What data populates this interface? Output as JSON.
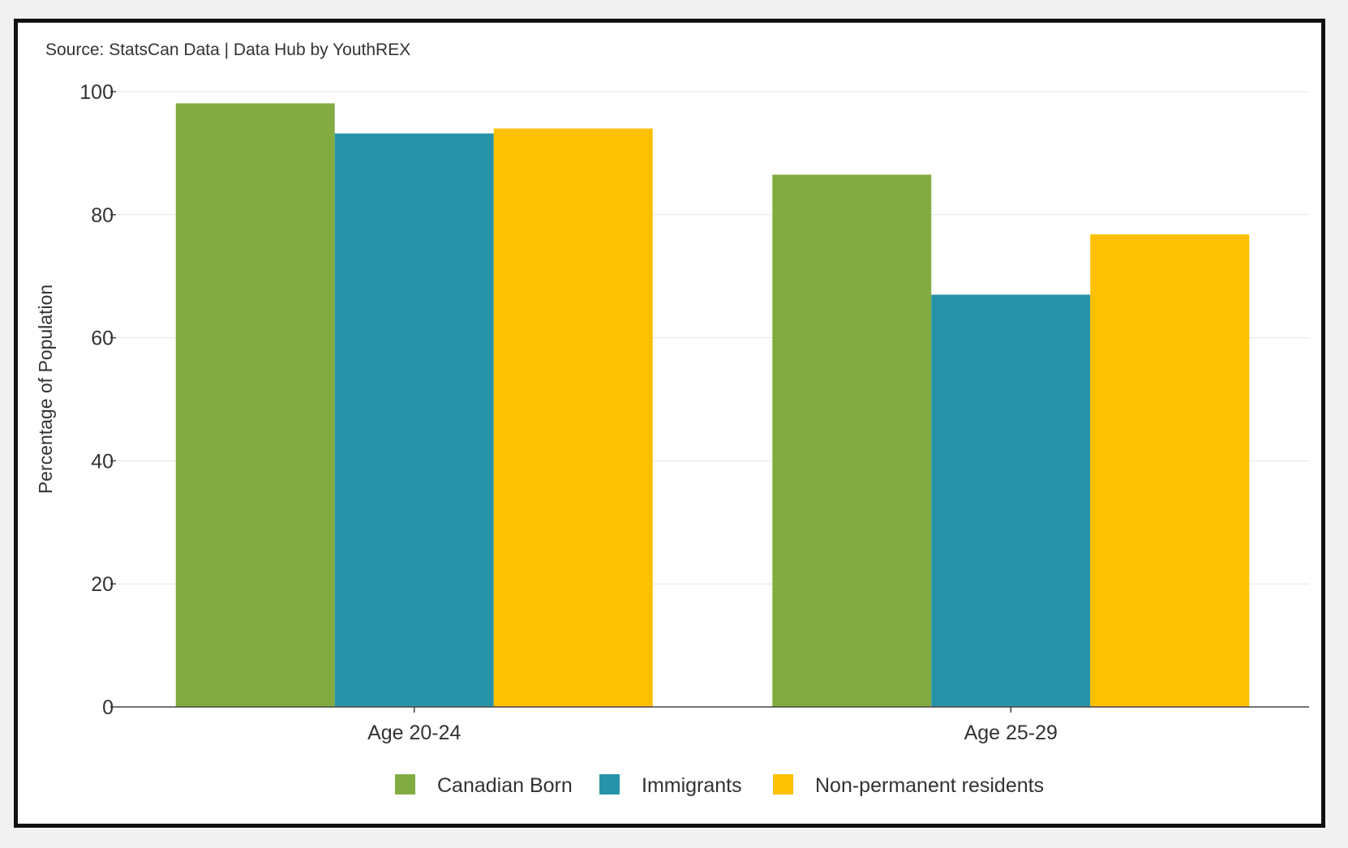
{
  "header": {
    "source": "Source: StatsCan Data | Data Hub by YouthREX"
  },
  "chart_data": {
    "type": "bar",
    "title": "",
    "xlabel": "",
    "ylabel": "Percentage of Population",
    "categories": [
      "Age 20-24",
      "Age 25-29"
    ],
    "series": [
      {
        "name": "Canadian Born",
        "color": "#82ac42",
        "values": [
          98.1,
          86.5
        ]
      },
      {
        "name": "Immigrants",
        "color": "#2893a8",
        "values": [
          93.2,
          67.0
        ]
      },
      {
        "name": "Non-permanent residents",
        "color": "#fdc003",
        "values": [
          94.0,
          76.8
        ]
      }
    ],
    "ylim": [
      0,
      100
    ],
    "yticks": [
      "0",
      "20",
      "40",
      "60",
      "80",
      "100"
    ],
    "grid": true,
    "legend": "bottom-center"
  }
}
